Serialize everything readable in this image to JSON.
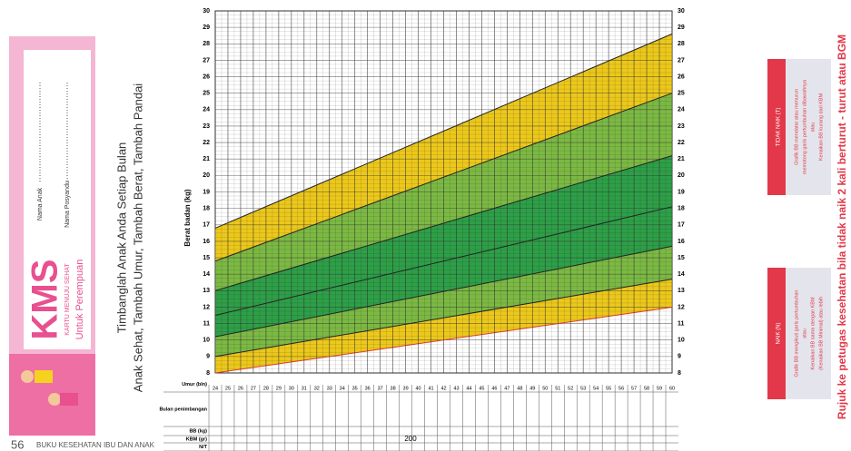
{
  "card": {
    "logo": "KMS",
    "subtitle": "KARTU MENUJU SEHAT",
    "gender": "Untuk Perempuan",
    "fields": [
      "Nama Anak",
      "Nama Posyandu"
    ]
  },
  "headline": [
    "Timbanglah Anak Anda Setiap Bulan",
    "Anak Sehat, Tambah Umur, Tambah Berat, Tambah Pandai"
  ],
  "footer": {
    "page": "56",
    "book": "BUKU KESEHATAN IBU DAN ANAK"
  },
  "chart_data": {
    "type": "line",
    "ylabel": "Berat badan (kg)",
    "x": [
      24,
      60
    ],
    "xlim": [
      24,
      60
    ],
    "xticks": [
      24,
      25,
      26,
      27,
      28,
      29,
      30,
      31,
      32,
      33,
      34,
      35,
      36,
      37,
      38,
      39,
      40,
      41,
      42,
      43,
      44,
      45,
      46,
      47,
      48,
      49,
      50,
      51,
      52,
      53,
      54,
      55,
      56,
      57,
      58,
      59,
      60
    ],
    "ylim": [
      8,
      30
    ],
    "yticks": [
      8,
      9,
      10,
      11,
      12,
      13,
      14,
      15,
      16,
      17,
      18,
      19,
      20,
      21,
      22,
      23,
      24,
      25,
      26,
      27,
      28,
      29,
      30
    ],
    "series": [
      {
        "color": "#222222",
        "values": [
          16.8,
          28.6
        ]
      },
      {
        "color": "#222222",
        "values": [
          14.8,
          25.0
        ]
      },
      {
        "color": "#222222",
        "values": [
          13.0,
          21.2
        ]
      },
      {
        "color": "#222222",
        "values": [
          11.5,
          18.1
        ]
      },
      {
        "color": "#222222",
        "values": [
          10.2,
          15.7
        ]
      },
      {
        "color": "#222222",
        "values": [
          9.0,
          13.7
        ]
      },
      {
        "color": "#e03a2a",
        "values": [
          8.0,
          12.0
        ]
      }
    ],
    "band_colors": [
      "#ecc81c",
      "#7cb944",
      "#2e9f48",
      "#2e9f48",
      "#7cb944",
      "#ecc81c"
    ],
    "grid": true
  },
  "table": {
    "rows": [
      "Umur (bln)",
      "Bulan penimbangan",
      "BB (kg)",
      "KBM (gr)",
      "N/T"
    ],
    "kbm": "200"
  },
  "legend": [
    {
      "title": "TIDAK NAIK (T)",
      "lines": [
        "Grafik BB mendatar atau menurun",
        "memotong garis pertumbuhan dibawahnya",
        "atau",
        "Kenaikan BB kurang dari KBM"
      ]
    },
    {
      "title": "NAIK (N)",
      "lines": [
        "Grafik BB mengikuti garis pertumbuhan",
        "atau",
        "Kenaikan BB sama dengan KBM",
        "(Kenaikan BB Minimal) atau lebih"
      ]
    }
  ],
  "note": "Rujuk ke petugas kesehatan bila tidak naik 2 kali berturut - turut atau BGM"
}
